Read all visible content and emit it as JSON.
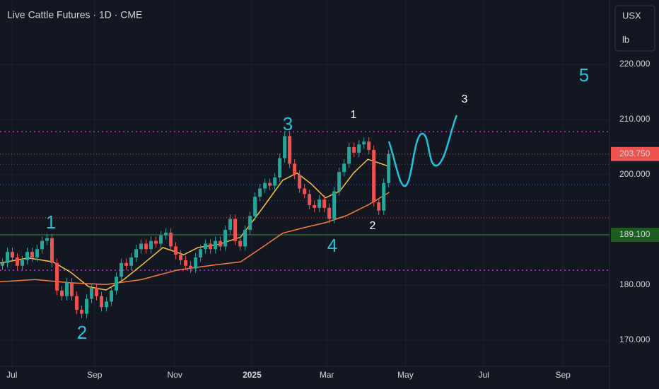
{
  "chart_data": {
    "type": "candlestick",
    "title": "Live Cattle Futures · 1D · CME",
    "unit": [
      "USX",
      "lb"
    ],
    "up_color": "#26a69a",
    "down_color": "#ef5350",
    "xlim": [
      0,
      123.1
    ],
    "ylim": [
      165.26,
      231.67
    ],
    "yticks": [
      {
        "value": 170,
        "label": "170.000"
      },
      {
        "value": 180,
        "label": "180.000"
      },
      {
        "value": 200,
        "label": "200.000"
      },
      {
        "value": 210,
        "label": "210.000"
      },
      {
        "value": 220,
        "label": "220.000"
      }
    ],
    "xticks": [
      {
        "value": 2.4,
        "label": "Jul"
      },
      {
        "value": 19.1,
        "label": "Sep"
      },
      {
        "value": 35.3,
        "label": "Nov"
      },
      {
        "value": 50.9,
        "label": "2025"
      },
      {
        "value": 66,
        "label": "Mar"
      },
      {
        "value": 81.9,
        "label": "May"
      },
      {
        "value": 97.7,
        "label": "Jul"
      },
      {
        "value": 113.7,
        "label": "Sep"
      }
    ],
    "grid": true,
    "ohlc": [
      [
        183.5,
        184.8,
        182.7,
        184
      ],
      [
        184,
        186.8,
        183.2,
        186
      ],
      [
        186,
        186.8,
        184.2,
        185
      ],
      [
        185,
        185.8,
        182.7,
        183.5
      ],
      [
        183.5,
        185.3,
        182.7,
        184.5
      ],
      [
        184.5,
        186.8,
        183.7,
        186
      ],
      [
        186,
        186.8,
        184.2,
        185
      ],
      [
        185,
        187.3,
        184.2,
        186.5
      ],
      [
        186.5,
        188.8,
        185.7,
        188
      ],
      [
        188,
        189.3,
        187.2,
        188.5
      ],
      [
        188.5,
        189.3,
        183.2,
        184
      ],
      [
        184,
        184.8,
        178.2,
        179
      ],
      [
        179,
        179.8,
        177.2,
        178
      ],
      [
        178,
        181.3,
        177.2,
        180.5
      ],
      [
        180.5,
        181.3,
        177.2,
        178
      ],
      [
        178,
        178.8,
        174.7,
        175.5
      ],
      [
        175.5,
        176.3,
        174,
        174.8
      ],
      [
        174.8,
        178.3,
        174,
        177.5
      ],
      [
        177.5,
        180.3,
        176.7,
        179.5
      ],
      [
        179.5,
        180.3,
        177.2,
        178
      ],
      [
        178,
        178.8,
        175.2,
        176
      ],
      [
        176,
        177.8,
        175.2,
        177
      ],
      [
        177,
        179.8,
        176.2,
        179
      ],
      [
        179,
        182.3,
        178.2,
        181.5
      ],
      [
        181.5,
        184.8,
        180.7,
        184
      ],
      [
        184,
        184.8,
        182.7,
        183.5
      ],
      [
        183.5,
        185.8,
        182.7,
        185
      ],
      [
        185,
        187.3,
        184.2,
        186.5
      ],
      [
        186.5,
        188.3,
        185.7,
        187.5
      ],
      [
        187.5,
        188.3,
        185.7,
        186.5
      ],
      [
        186.5,
        188.8,
        185.7,
        188
      ],
      [
        188,
        188.8,
        186.7,
        187.5
      ],
      [
        187.5,
        189.8,
        186.7,
        189
      ],
      [
        189,
        190.3,
        188.2,
        189.5
      ],
      [
        189.5,
        190.3,
        186.2,
        187
      ],
      [
        187,
        187.8,
        184.7,
        185.5
      ],
      [
        185.5,
        186.3,
        183.7,
        184.5
      ],
      [
        184.5,
        185.3,
        182.7,
        183.5
      ],
      [
        183.5,
        184.3,
        182.2,
        183
      ],
      [
        183,
        185.8,
        182.2,
        185
      ],
      [
        185,
        187.3,
        184.2,
        186.5
      ],
      [
        186.5,
        188.3,
        185.7,
        187.5
      ],
      [
        187.5,
        188.3,
        185.7,
        186.5
      ],
      [
        186.5,
        188.8,
        185.7,
        188
      ],
      [
        188,
        188.8,
        186.2,
        187
      ],
      [
        187,
        190.8,
        186.2,
        190
      ],
      [
        190,
        192.8,
        189.2,
        192
      ],
      [
        192,
        192.8,
        187.2,
        188
      ],
      [
        188,
        188.8,
        186.2,
        187
      ],
      [
        187,
        190.8,
        186.2,
        190
      ],
      [
        190,
        193.3,
        189.2,
        192.5
      ],
      [
        192.5,
        196.8,
        191.7,
        196
      ],
      [
        196,
        198.3,
        195.2,
        197.5
      ],
      [
        197.5,
        199.3,
        196.7,
        198.5
      ],
      [
        198.5,
        199.3,
        197.2,
        198
      ],
      [
        198,
        200.3,
        197.2,
        199.5
      ],
      [
        199.5,
        203.8,
        198.7,
        203
      ],
      [
        203,
        207.8,
        202.2,
        207
      ],
      [
        207,
        207.8,
        201.2,
        202
      ],
      [
        202,
        202.8,
        199.2,
        200
      ],
      [
        200,
        200.8,
        196.7,
        197.5
      ],
      [
        197.5,
        198.3,
        195.7,
        196.5
      ],
      [
        196.5,
        197.3,
        193.7,
        194.5
      ],
      [
        194.5,
        195.3,
        193.2,
        194
      ],
      [
        194,
        196.3,
        193.2,
        195.5
      ],
      [
        195.5,
        196.3,
        193.2,
        194
      ],
      [
        194,
        194.8,
        191.2,
        192
      ],
      [
        192,
        197.8,
        191.2,
        197
      ],
      [
        197,
        201.3,
        196.2,
        200.5
      ],
      [
        200.5,
        202.8,
        199.7,
        202
      ],
      [
        202,
        205.8,
        201.2,
        205
      ],
      [
        205,
        205.8,
        203.2,
        204
      ],
      [
        204,
        206.3,
        203.2,
        205.5
      ],
      [
        205.5,
        206.8,
        204.7,
        206
      ],
      [
        206,
        206.8,
        203.7,
        204.5
      ],
      [
        204.5,
        205.3,
        194.2,
        195
      ],
      [
        195,
        195.8,
        192.7,
        193.5
      ],
      [
        193.5,
        199.3,
        192.7,
        198.5
      ],
      [
        198.5,
        204.5,
        197.7,
        203.75
      ]
    ],
    "moving_averages": [
      {
        "color": "#f6c343",
        "x": [
          0,
          5.7,
          10.7,
          14.3,
          17.9,
          21.4,
          25,
          28.6,
          32.9,
          37.1,
          40,
          44.3,
          48.6,
          52.9,
          57.1,
          60,
          62.9,
          65.7,
          68.6,
          71.4,
          74.3,
          78.6
        ],
        "values": [
          184,
          184.9,
          184.2,
          182.3,
          179.7,
          179.1,
          181,
          183.6,
          186.8,
          185.5,
          186.8,
          187.4,
          188.7,
          193.8,
          199,
          200.3,
          198.3,
          195.8,
          197,
          200.3,
          202.8,
          201.5
        ]
      },
      {
        "color": "#f57c3b",
        "x": [
          0,
          7.1,
          14.3,
          21.4,
          28.6,
          35.7,
          42.9,
          48.6,
          52.9,
          57.1,
          61.4,
          65.7,
          70,
          74.3,
          78.6
        ],
        "values": [
          180.6,
          181,
          180.4,
          180.1,
          181,
          182.7,
          183.6,
          184.2,
          186.8,
          189.4,
          190.4,
          191.3,
          192.6,
          194.5,
          196.8
        ]
      }
    ],
    "levels": [
      {
        "value": 207.8,
        "color": "#9c27b0",
        "style": "dotted"
      },
      {
        "value": 182.7,
        "color": "#9c27b0",
        "style": "dotted"
      },
      {
        "value": 203.75,
        "color": "#ef5350",
        "style": "dotted",
        "label": "203.750"
      },
      {
        "value": 192.2,
        "color": "#ef5350",
        "style": "dotted"
      },
      {
        "value": 198.2,
        "color": "#2962ff",
        "style": "dotted"
      },
      {
        "value": 189.1,
        "color": "#388e3c",
        "style": "solid",
        "label": "189.100"
      },
      {
        "value": 201.9,
        "color": "#50535e",
        "style": "dotted"
      },
      {
        "value": 195.3,
        "color": "#50535e",
        "style": "dotted"
      }
    ],
    "annotations": [
      "1",
      "2",
      "3",
      "4",
      "1",
      "2",
      "3",
      "5"
    ]
  }
}
